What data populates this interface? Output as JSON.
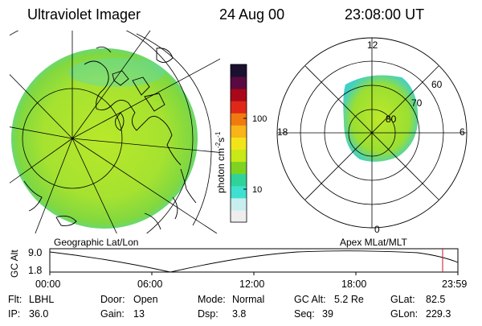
{
  "header": {
    "instrument": "Ultraviolet Imager",
    "date": "24 Aug 00",
    "time": "23:08:00 UT"
  },
  "colorbar": {
    "unit": "photon cm",
    "unit_sup1": "-2",
    "unit_mid": "s",
    "unit_sup2": "-1",
    "ticks": [
      "100",
      "10"
    ],
    "scale": "log",
    "colors": [
      "#eeeeee",
      "#c8eef0",
      "#40e0d0",
      "#2fd39a",
      "#7ed321",
      "#c8e818",
      "#f3e41a",
      "#f8b418",
      "#f07a10",
      "#e02818",
      "#a8081a",
      "#5a0a40",
      "#1a1030"
    ]
  },
  "left_panel": {
    "caption": "Geographic Lat/Lon"
  },
  "right_panel": {
    "caption": "Apex MLat/MLT",
    "mlt_labels": [
      "12",
      "18",
      "6",
      "0"
    ],
    "mlat_labels": [
      "60",
      "70",
      "80"
    ]
  },
  "timeline": {
    "ylabel": "GC Alt",
    "y_ticks": [
      "9.0",
      "1.8"
    ],
    "x_ticks": [
      "00:00",
      "06:00",
      "12:00",
      "18:00",
      "23:59"
    ],
    "current_marker_color": "#c8102e"
  },
  "info": {
    "row1": [
      {
        "label": "Flt:",
        "value": "LBHL"
      },
      {
        "label": "Door:",
        "value": "Open"
      },
      {
        "label": "Mode:",
        "value": "Normal"
      },
      {
        "label": "GC Alt:",
        "value": "5.2 Re"
      },
      {
        "label": "GLat:",
        "value": "82.5"
      }
    ],
    "row2": [
      {
        "label": "IP:",
        "value": "36.0"
      },
      {
        "label": "Gain:",
        "value": "13"
      },
      {
        "label": "Dsp:",
        "value": "3.8"
      },
      {
        "label": "Seq:",
        "value": "39"
      },
      {
        "label": "GLon:",
        "value": "229.3"
      }
    ]
  }
}
